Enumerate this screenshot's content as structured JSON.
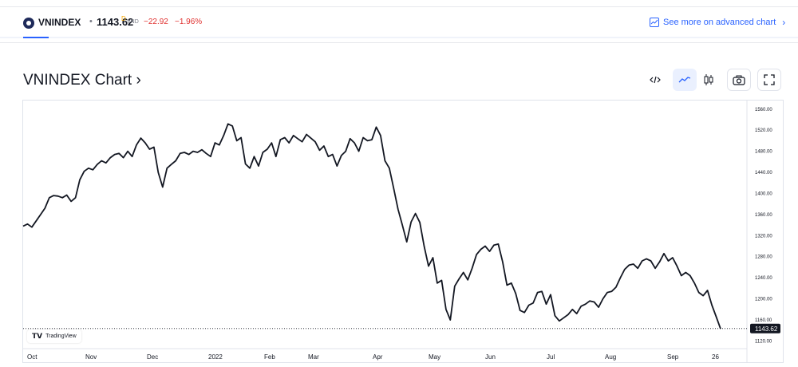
{
  "header": {
    "symbol": "VNINDEX",
    "separator": "•",
    "price": "1143.62",
    "price_superscript": "D",
    "currency": "VND",
    "change": "−22.92",
    "change_percent": "−1.96%",
    "advanced_link": "See more on advanced chart"
  },
  "title": "VNINDEX Chart ›",
  "toolbar": {
    "code_icon": "code-icon",
    "line_icon": "line-chart-icon",
    "candle_icon": "candlestick-icon",
    "camera_icon": "camera-icon",
    "fullscreen_icon": "fullscreen-icon"
  },
  "colors": {
    "accent": "#2962ff",
    "negative": "#e0312f",
    "line": "#131722"
  },
  "watermark": "TradingView",
  "chart_data": {
    "type": "line",
    "y_ticks": [
      "1560.00",
      "1520.00",
      "1480.00",
      "1440.00",
      "1400.00",
      "1360.00",
      "1320.00",
      "1280.00",
      "1240.00",
      "1200.00",
      "1160.00",
      "1120.00"
    ],
    "x_ticks": [
      "Oct",
      "Nov",
      "Dec",
      "2022",
      "Feb",
      "Mar",
      "Apr",
      "May",
      "Jun",
      "Jul",
      "Aug",
      "Sep",
      "26"
    ],
    "ylim": [
      1110,
      1570
    ],
    "last_price_label": "1143.62",
    "series": [
      {
        "values": [
          1338,
          1342,
          1336,
          1348,
          1360,
          1372,
          1392,
          1396,
          1395,
          1392,
          1397,
          1385,
          1392,
          1426,
          1442,
          1448,
          1445,
          1455,
          1462,
          1458,
          1468,
          1474,
          1476,
          1468,
          1480,
          1470,
          1492,
          1505,
          1496,
          1484,
          1488,
          1440,
          1412,
          1448,
          1455,
          1462,
          1476,
          1478,
          1474,
          1480,
          1478,
          1483,
          1476,
          1470,
          1496,
          1492,
          1510,
          1532,
          1528,
          1500,
          1506,
          1456,
          1448,
          1470,
          1452,
          1478,
          1484,
          1496,
          1470,
          1502,
          1506,
          1496,
          1510,
          1504,
          1498,
          1512,
          1505,
          1498,
          1482,
          1490,
          1470,
          1474,
          1452,
          1472,
          1480,
          1504,
          1496,
          1480,
          1506,
          1500,
          1502,
          1526,
          1510,
          1462,
          1448,
          1410,
          1370,
          1340,
          1308,
          1346,
          1362,
          1345,
          1300,
          1262,
          1278,
          1230,
          1235,
          1180,
          1160,
          1224,
          1238,
          1250,
          1236,
          1258,
          1284,
          1294,
          1300,
          1290,
          1302,
          1304,
          1270,
          1226,
          1230,
          1210,
          1178,
          1174,
          1188,
          1192,
          1212,
          1214,
          1190,
          1208,
          1168,
          1158,
          1164,
          1170,
          1180,
          1172,
          1186,
          1190,
          1196,
          1194,
          1184,
          1200,
          1212,
          1214,
          1222,
          1240,
          1256,
          1264,
          1266,
          1258,
          1272,
          1276,
          1272,
          1258,
          1270,
          1286,
          1272,
          1278,
          1262,
          1244,
          1250,
          1244,
          1230,
          1212,
          1206,
          1216,
          1188,
          1166,
          1143
        ]
      }
    ]
  }
}
